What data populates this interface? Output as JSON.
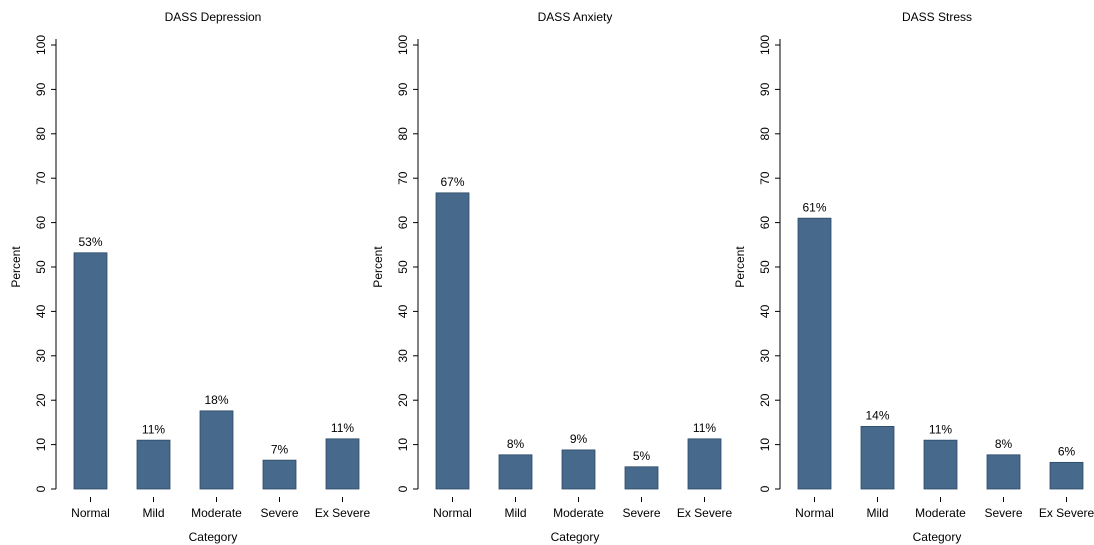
{
  "chart_data": [
    {
      "type": "bar",
      "title": "DASS Depression",
      "xlabel": "Category",
      "ylabel": "Percent",
      "categories": [
        "Normal",
        "Mild",
        "Moderate",
        "Severe",
        "Ex Severe"
      ],
      "values": [
        53.2,
        11,
        17.6,
        6.5,
        11.3
      ],
      "value_labels": [
        "53%",
        "11%",
        "18%",
        "7%",
        "11%"
      ],
      "color": "#46698c",
      "ylim": [
        0,
        100
      ],
      "yticks": [
        0,
        10,
        20,
        30,
        40,
        50,
        60,
        70,
        80,
        90,
        100
      ]
    },
    {
      "type": "bar",
      "title": "DASS Anxiety",
      "xlabel": "Category",
      "ylabel": "Percent",
      "categories": [
        "Normal",
        "Mild",
        "Moderate",
        "Severe",
        "Ex Severe"
      ],
      "values": [
        66.7,
        7.7,
        8.8,
        5.0,
        11.3
      ],
      "value_labels": [
        "67%",
        "8%",
        "9%",
        "5%",
        "11%"
      ],
      "color": "#46698c",
      "ylim": [
        0,
        100
      ],
      "yticks": [
        0,
        10,
        20,
        30,
        40,
        50,
        60,
        70,
        80,
        90,
        100
      ]
    },
    {
      "type": "bar",
      "title": "DASS Stress",
      "xlabel": "Category",
      "ylabel": "Percent",
      "categories": [
        "Normal",
        "Mild",
        "Moderate",
        "Severe",
        "Ex Severe"
      ],
      "values": [
        61,
        14.1,
        11,
        7.7,
        6.0
      ],
      "value_labels": [
        "61%",
        "14%",
        "11%",
        "8%",
        "6%"
      ],
      "color": "#46698c",
      "ylim": [
        0,
        100
      ],
      "yticks": [
        0,
        10,
        20,
        30,
        40,
        50,
        60,
        70,
        80,
        90,
        100
      ]
    }
  ]
}
